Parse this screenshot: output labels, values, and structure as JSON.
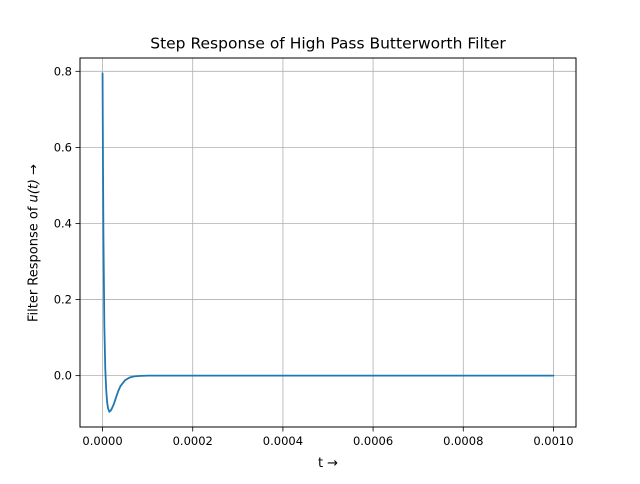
{
  "chart_data": {
    "type": "line",
    "title": "Step Response of High Pass Butterworth Filter",
    "xlabel": "t →",
    "ylabel_prefix": "Filter Response of ",
    "ylabel_math": "u(t)",
    "ylabel_suffix": " →",
    "xlim": [
      -5e-05,
      0.00105
    ],
    "ylim": [
      -0.135,
      0.835
    ],
    "x_ticks": [
      0.0,
      0.0002,
      0.0004,
      0.0006,
      0.0008,
      0.001
    ],
    "x_tick_labels": [
      "0.0000",
      "0.0002",
      "0.0004",
      "0.0006",
      "0.0008",
      "0.0010"
    ],
    "y_ticks": [
      0.0,
      0.2,
      0.4,
      0.6,
      0.8
    ],
    "y_tick_labels": [
      "0.0",
      "0.2",
      "0.4",
      "0.6",
      "0.8"
    ],
    "grid": true,
    "colors": {
      "line": "#1f77b4",
      "grid": "#b0b0b0",
      "axes": "#000000"
    },
    "series": [
      {
        "x": [
          0.0,
          1e-06,
          2e-06,
          4e-06,
          6e-06,
          8e-06,
          1e-05,
          1.2e-05,
          1.5e-05,
          1.8e-05,
          2e-05,
          2.5e-05,
          3e-05,
          3.5e-05,
          4e-05,
          5e-05,
          6e-05,
          7e-05,
          8e-05,
          0.0001,
          0.00012,
          0.00015,
          0.0002,
          0.0003,
          0.0005,
          0.0007,
          0.001
        ],
        "values": [
          0.795,
          0.55,
          0.36,
          0.13,
          0.02,
          -0.035,
          -0.068,
          -0.085,
          -0.095,
          -0.092,
          -0.088,
          -0.075,
          -0.057,
          -0.04,
          -0.027,
          -0.012,
          -0.005,
          -0.002,
          -0.001,
          0.0,
          0.0,
          0.0,
          0.0,
          0.0,
          0.0,
          0.0,
          0.0
        ]
      }
    ]
  }
}
